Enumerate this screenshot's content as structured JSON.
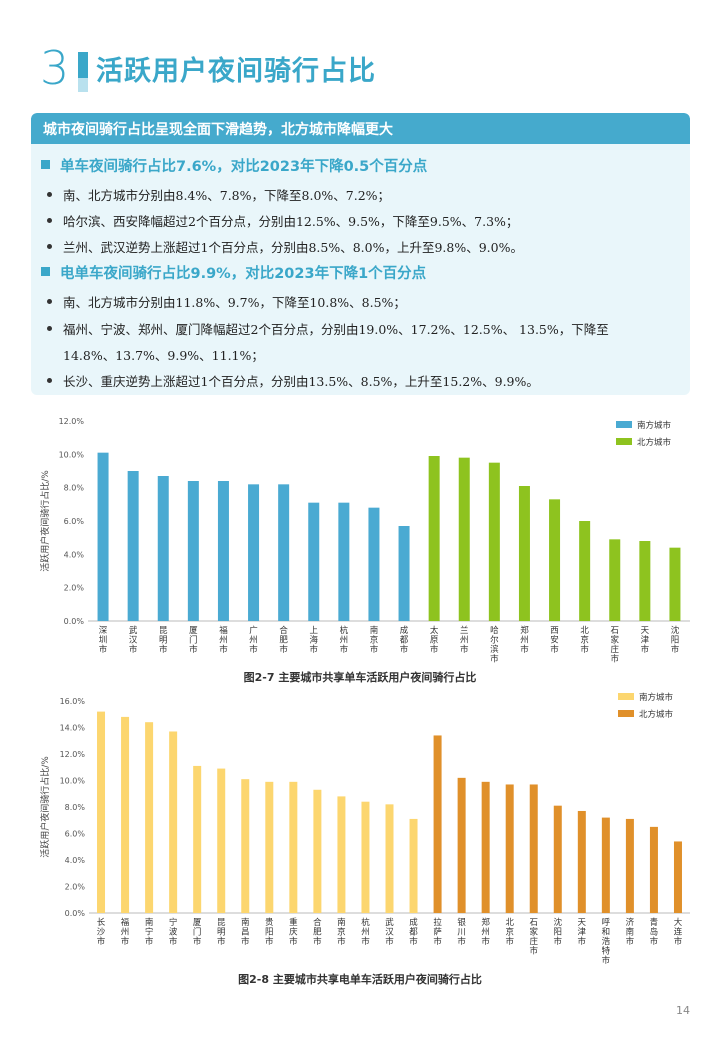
{
  "section": {
    "number": "3",
    "title": "活跃用户夜间骑行占比"
  },
  "info": {
    "headline": "城市夜间骑行占比呈现全面下滑趋势，北方城市降幅更大",
    "bike": {
      "title": "单车夜间骑行占比7.6%，对比2023年下降0.5个百分点",
      "bullets": [
        "南、北方城市分别由8.4%、7.8%，下降至8.0%、7.2%；",
        "哈尔滨、西安降幅超过2个百分点，分别由12.5%、9.5%，下降至9.5%、7.3%；",
        "兰州、武汉逆势上涨超过1个百分点，分别由8.5%、8.0%，上升至9.8%、9.0%。"
      ]
    },
    "ebike": {
      "title": "电单车夜间骑行占比9.9%，对比2023年下降1个百分点",
      "bullets": [
        "南、北方城市分别由11.8%、9.7%，下降至10.8%、8.5%；",
        "福州、宁波、郑州、厦门降幅超过2个百分点，分别由19.0%、17.2%、12.5%、 13.5%，下降至",
        "14.8%、13.7%、9.9%、11.1%；",
        "长沙、重庆逆势上涨超过1个百分点，分别由13.5%、8.5%，上升至15.2%、9.9%。"
      ]
    }
  },
  "chart_data": [
    {
      "type": "bar",
      "title": "图2-7 主要城市共享单车活跃用户夜间骑行占比",
      "ylabel": "活跃用户夜间骑行占比/%",
      "ylim": [
        0,
        12
      ],
      "yticks": [
        "0.0%",
        "2.0%",
        "4.0%",
        "6.0%",
        "8.0%",
        "10.0%",
        "12.0%"
      ],
      "legend_position": "top-right",
      "categories": [
        "深圳市",
        "武汉市",
        "昆明市",
        "厦门市",
        "福州市",
        "广州市",
        "合肥市",
        "上海市",
        "杭州市",
        "南京市",
        "成都市",
        "太原市",
        "兰州市",
        "哈尔滨市",
        "郑州市",
        "西安市",
        "北京市",
        "石家庄市",
        "天津市",
        "沈阳市"
      ],
      "group": [
        "南方城市",
        "南方城市",
        "南方城市",
        "南方城市",
        "南方城市",
        "南方城市",
        "南方城市",
        "南方城市",
        "南方城市",
        "南方城市",
        "南方城市",
        "北方城市",
        "北方城市",
        "北方城市",
        "北方城市",
        "北方城市",
        "北方城市",
        "北方城市",
        "北方城市",
        "北方城市"
      ],
      "values": [
        10.1,
        9.0,
        8.7,
        8.4,
        8.4,
        8.2,
        8.2,
        7.1,
        7.1,
        6.8,
        5.7,
        9.9,
        9.8,
        9.5,
        8.1,
        7.3,
        6.0,
        4.9,
        4.8,
        4.4
      ],
      "series": [
        {
          "name": "南方城市",
          "color": "#4aaad2"
        },
        {
          "name": "北方城市",
          "color": "#8ec31f"
        }
      ]
    },
    {
      "type": "bar",
      "title": "图2-8 主要城市共享电单车活跃用户夜间骑行占比",
      "ylabel": "活跃用户夜间骑行占比/%",
      "ylim": [
        0,
        16
      ],
      "yticks": [
        "0.0%",
        "2.0%",
        "4.0%",
        "6.0%",
        "8.0%",
        "10.0%",
        "12.0%",
        "14.0%",
        "16.0%"
      ],
      "legend_position": "top-right",
      "categories": [
        "长沙市",
        "福州市",
        "南宁市",
        "宁波市",
        "厦门市",
        "昆明市",
        "南昌市",
        "贵阳市",
        "重庆市",
        "合肥市",
        "南京市",
        "杭州市",
        "武汉市",
        "成都市",
        "拉萨市",
        "银川市",
        "郑州市",
        "北京市",
        "石家庄市",
        "沈阳市",
        "天津市",
        "呼和浩特市",
        "济南市",
        "青岛市",
        "大连市"
      ],
      "group": [
        "南方城市",
        "南方城市",
        "南方城市",
        "南方城市",
        "南方城市",
        "南方城市",
        "南方城市",
        "南方城市",
        "南方城市",
        "南方城市",
        "南方城市",
        "南方城市",
        "南方城市",
        "南方城市",
        "北方城市",
        "北方城市",
        "北方城市",
        "北方城市",
        "北方城市",
        "北方城市",
        "北方城市",
        "北方城市",
        "北方城市",
        "北方城市",
        "北方城市"
      ],
      "values": [
        15.2,
        14.8,
        14.4,
        13.7,
        11.1,
        10.9,
        10.1,
        9.9,
        9.9,
        9.3,
        8.8,
        8.4,
        8.2,
        7.1,
        13.4,
        10.2,
        9.9,
        9.7,
        9.7,
        8.1,
        7.7,
        7.2,
        7.1,
        6.5,
        5.4
      ],
      "series": [
        {
          "name": "南方城市",
          "color": "#fcd66f"
        },
        {
          "name": "北方城市",
          "color": "#e0902a"
        }
      ]
    }
  ],
  "page": {
    "number": "14"
  }
}
